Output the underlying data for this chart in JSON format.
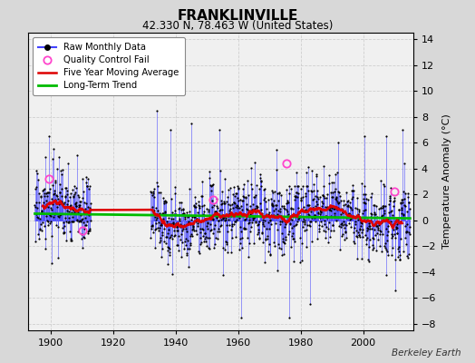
{
  "title": "FRANKLINVILLE",
  "subtitle": "42.330 N, 78.463 W (United States)",
  "ylabel": "Temperature Anomaly (°C)",
  "attribution": "Berkeley Earth",
  "ylim": [
    -8.5,
    14.5
  ],
  "xlim": [
    1893,
    2016
  ],
  "xticks": [
    1900,
    1920,
    1940,
    1960,
    1980,
    2000
  ],
  "yticks": [
    -8,
    -6,
    -4,
    -2,
    0,
    2,
    4,
    6,
    8,
    10,
    12,
    14
  ],
  "fig_bg": "#d8d8d8",
  "plot_bg": "#f0f0f0",
  "raw_color": "#4444ff",
  "ma_color": "#dd0000",
  "trend_color": "#00bb00",
  "qc_color": "#ff44cc",
  "seed": 17,
  "start_year": 1895,
  "end_year": 2014,
  "gap_start_year": 1912,
  "gap_end_year": 1932,
  "noise_std": 1.4,
  "trend_slope": -0.003,
  "trend_intercept": 0.35
}
